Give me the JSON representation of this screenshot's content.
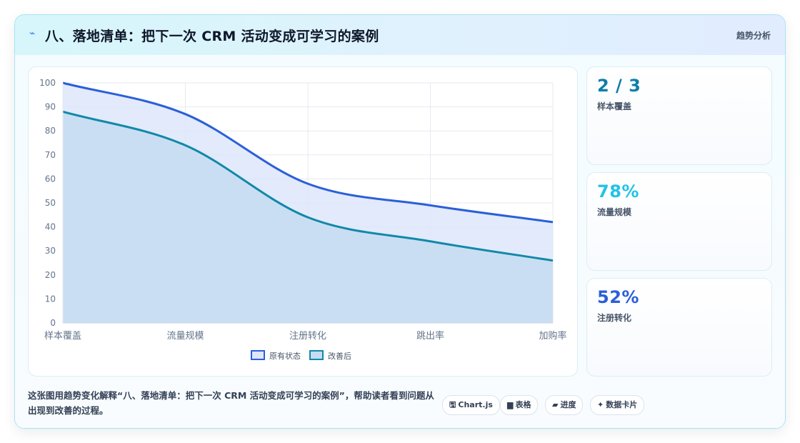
{
  "header": {
    "icon": "lightning-icon",
    "title": "八、落地清单：把下一次 CRM 活动变成可学习的案例",
    "tag": "趋势分析"
  },
  "chart_data": {
    "type": "area",
    "categories": [
      "样本覆盖",
      "流量规模",
      "注册转化",
      "跳出率",
      "加购率"
    ],
    "ylim": [
      0,
      100
    ],
    "yticks": [
      0,
      10,
      20,
      30,
      40,
      50,
      60,
      70,
      80,
      90,
      100
    ],
    "grid": true,
    "legend": "bottom",
    "series": [
      {
        "name": "原有状态",
        "values": [
          100,
          87,
          58,
          49,
          42
        ],
        "color": "#2b5fd9",
        "fill": "#dde6fa"
      },
      {
        "name": "改善后",
        "values": [
          88,
          74,
          44,
          34,
          26
        ],
        "color": "#1189a8",
        "fill": "#c5dcf1"
      }
    ]
  },
  "stats": [
    {
      "value": "2 / 3",
      "label": "样本覆盖",
      "color": "#0e7ea8"
    },
    {
      "value": "78%",
      "label": "流量规模",
      "color": "#22c3e6"
    },
    {
      "value": "52%",
      "label": "注册转化",
      "color": "#2b5fd9"
    }
  ],
  "caption": "这张图用趋势变化解释“八、落地清单：把下一次 CRM 活动变成可学习的案例”，帮助读者看到问题从出现到改善的过程。",
  "chips": [
    {
      "icon": "🖫",
      "icon_name": "chart-icon",
      "label": "Chart.js"
    },
    {
      "icon": "▆",
      "icon_name": "table-icon",
      "label": "表格"
    },
    {
      "icon": "▰",
      "icon_name": "progress-icon",
      "label": "进度"
    },
    {
      "icon": "✦",
      "icon_name": "sparkle-icon",
      "label": "数据卡片"
    }
  ]
}
